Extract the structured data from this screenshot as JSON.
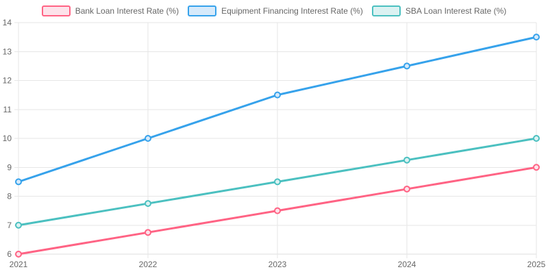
{
  "chart_data": {
    "type": "line",
    "title": "",
    "xlabel": "",
    "ylabel": "",
    "x": [
      "2021",
      "2022",
      "2023",
      "2024",
      "2025"
    ],
    "y_ticks": [
      6,
      7,
      8,
      9,
      10,
      11,
      12,
      13,
      14
    ],
    "ylim": [
      6,
      14
    ],
    "grid": true,
    "legend_position": "top",
    "series": [
      {
        "name": "Bank Loan Interest Rate (%)",
        "color": "#FF6384",
        "fill": "#FDE2EA",
        "values": [
          6,
          6.75,
          7.5,
          8.25,
          9
        ]
      },
      {
        "name": "Equipment Financing Interest Rate (%)",
        "color": "#36A2EB",
        "fill": "#D6EAFB",
        "values": [
          8.5,
          10,
          11.5,
          12.5,
          13.5
        ]
      },
      {
        "name": "SBA Loan Interest Rate (%)",
        "color": "#4BC0C0",
        "fill": "#DBF2F2",
        "values": [
          7,
          7.75,
          8.5,
          9.25,
          10
        ]
      }
    ],
    "colors": {
      "grid": "#e6e6e6",
      "axis_border": "#dedede",
      "tick_text": "#666666",
      "background": "#ffffff"
    }
  }
}
